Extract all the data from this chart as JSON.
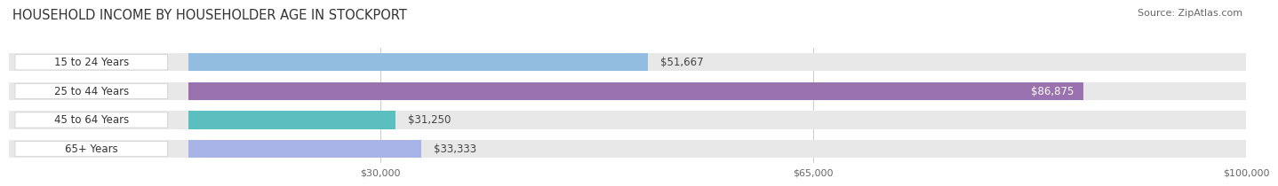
{
  "title": "HOUSEHOLD INCOME BY HOUSEHOLDER AGE IN STOCKPORT",
  "source": "Source: ZipAtlas.com",
  "categories": [
    "15 to 24 Years",
    "25 to 44 Years",
    "45 to 64 Years",
    "65+ Years"
  ],
  "values": [
    51667,
    86875,
    31250,
    33333
  ],
  "bar_colors": [
    "#92bde0",
    "#9b72b0",
    "#5bbfbf",
    "#a8b4e8"
  ],
  "bar_bg_color": "#e8e8e8",
  "label_bg_color": "#ffffff",
  "xmax": 100000,
  "x_label_offset": 14500,
  "xticks": [
    30000,
    65000,
    100000
  ],
  "xtick_labels": [
    "$30,000",
    "$65,000",
    "$100,000"
  ],
  "value_labels": [
    "$51,667",
    "$86,875",
    "$31,250",
    "$33,333"
  ],
  "value_inside_threshold": 0.75,
  "title_fontsize": 10.5,
  "source_fontsize": 8,
  "bar_label_fontsize": 8.5,
  "category_fontsize": 8.5,
  "background_color": "#ffffff"
}
